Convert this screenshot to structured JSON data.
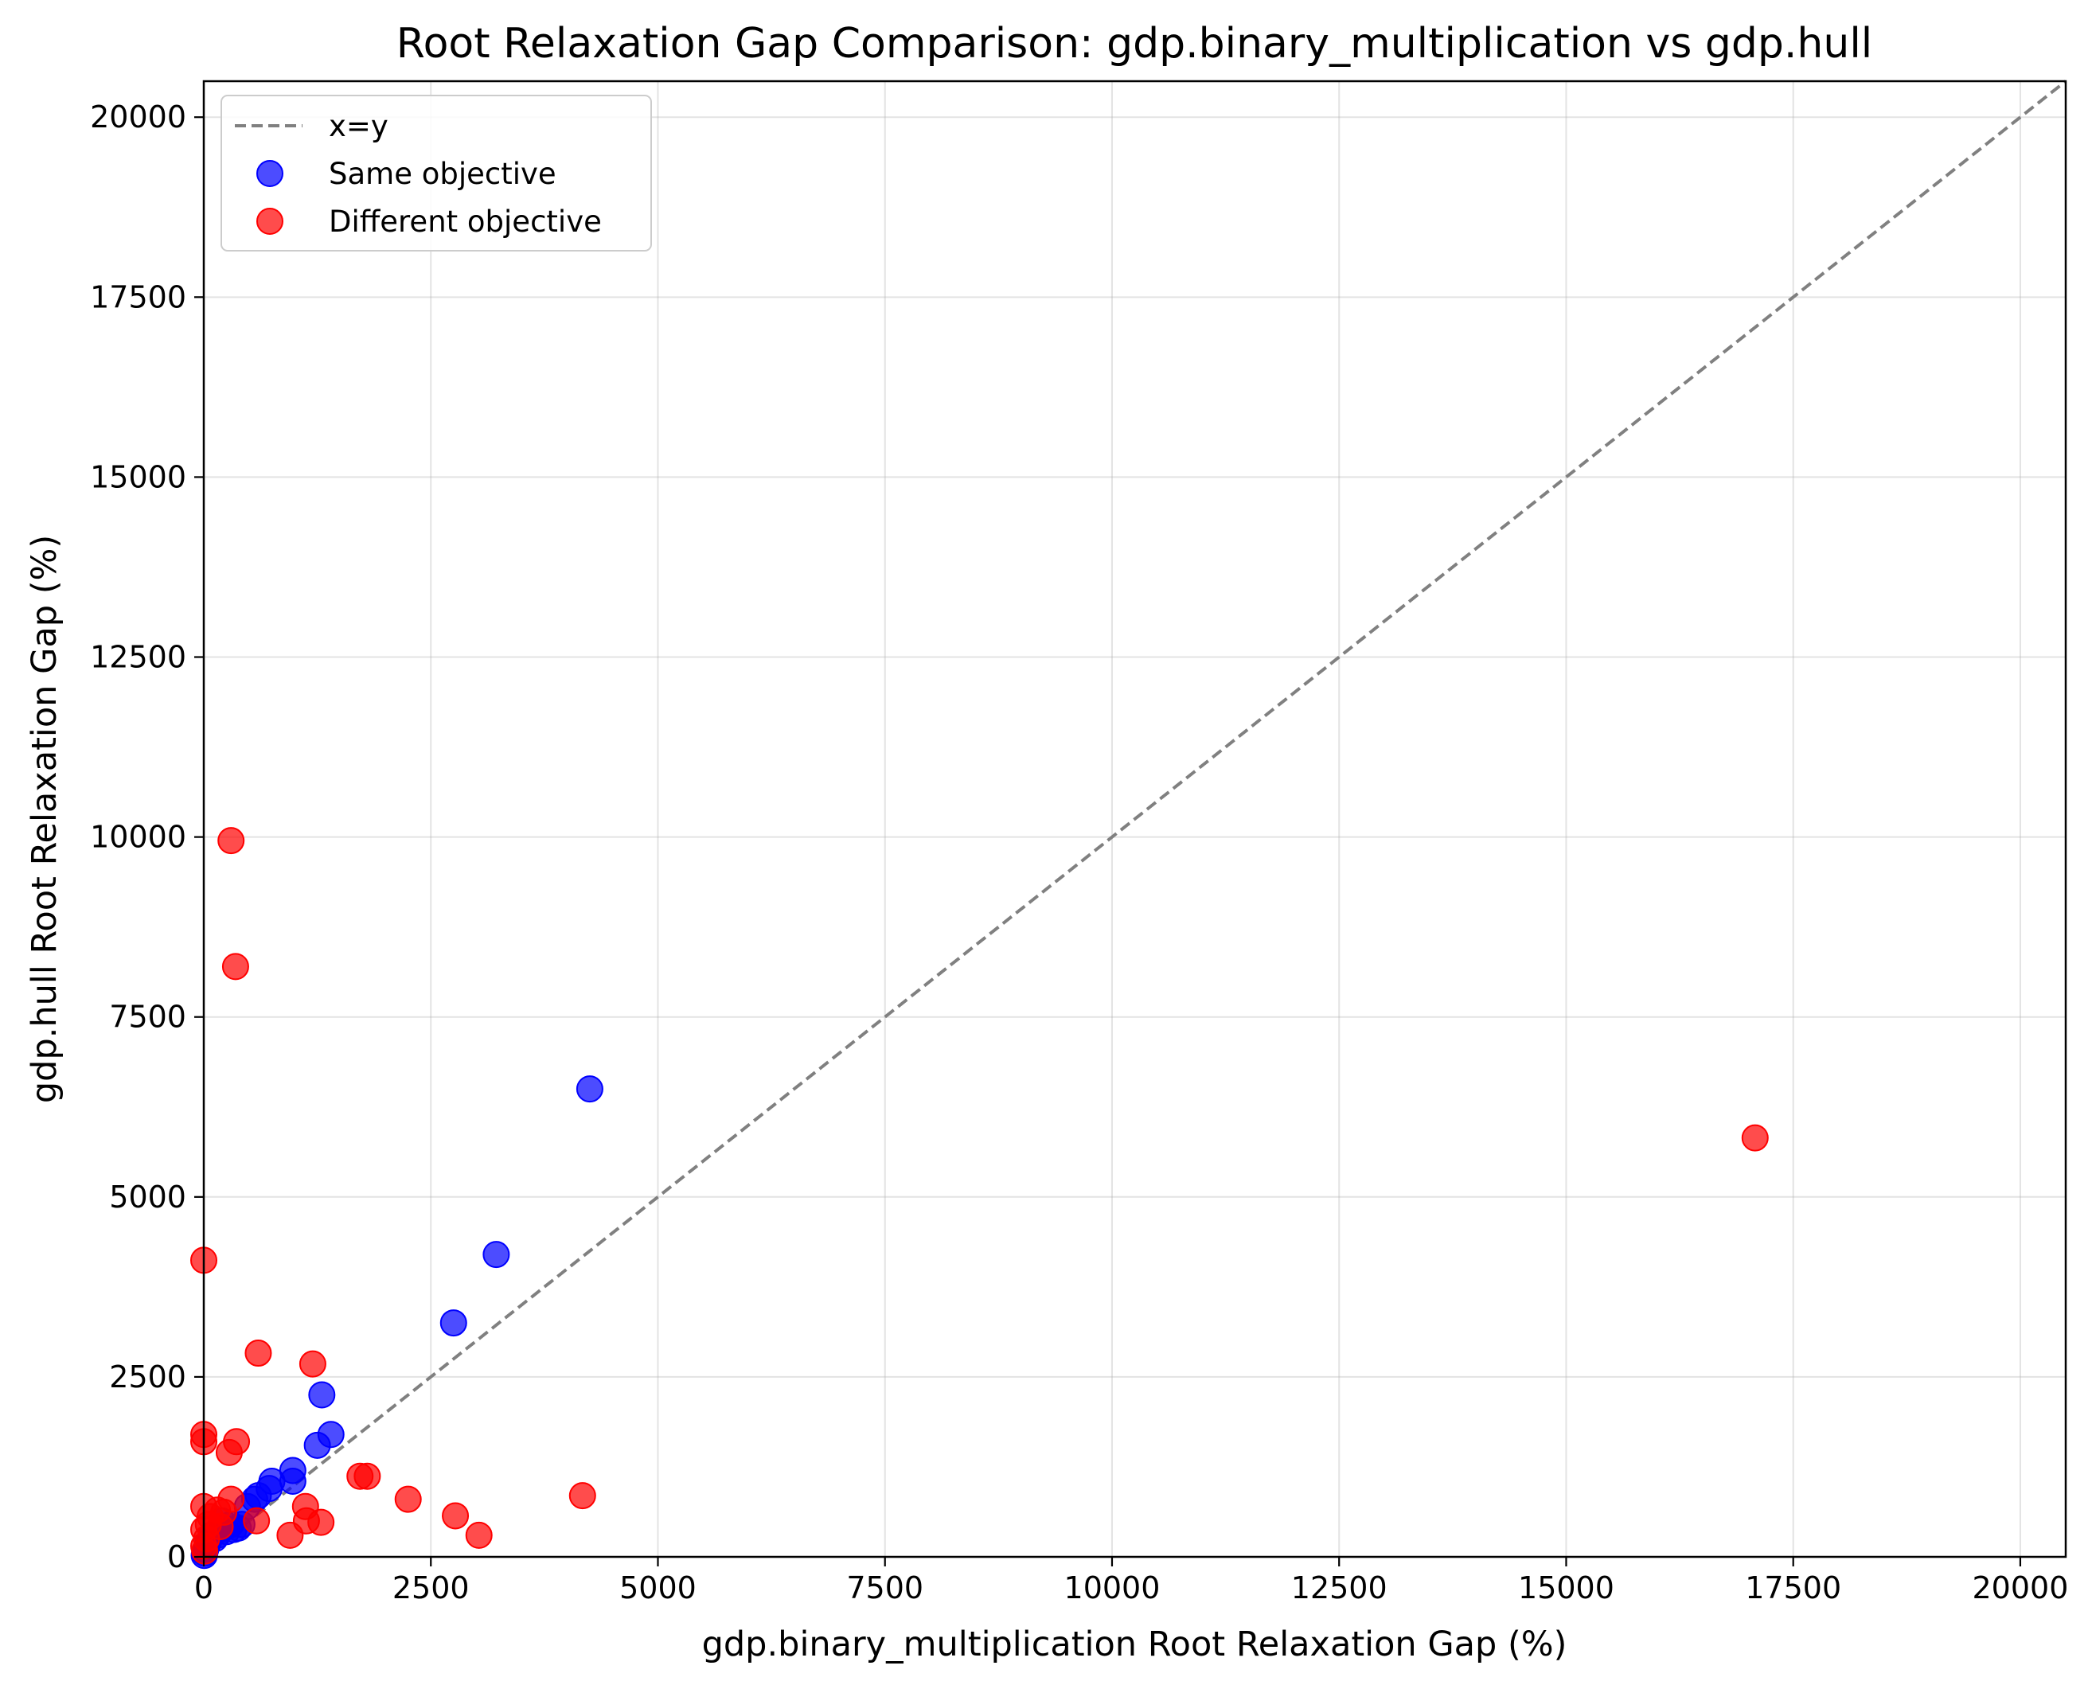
{
  "chart_data": {
    "type": "scatter",
    "title": "Root Relaxation Gap Comparison: gdp.binary_multiplication vs gdp.hull",
    "xlabel": "gdp.binary_multiplication Root Relaxation Gap (%)",
    "ylabel": "gdp.hull Root Relaxation Gap (%)",
    "xlim": [
      0,
      20500
    ],
    "ylim": [
      0,
      20500
    ],
    "x_ticks": [
      "0",
      "2500",
      "5000",
      "7500",
      "10000",
      "12500",
      "15000",
      "17500",
      "20000"
    ],
    "y_ticks": [
      "0",
      "2500",
      "5000",
      "7500",
      "10000",
      "12500",
      "15000",
      "17500",
      "20000"
    ],
    "grid": true,
    "legend_position": "top-left",
    "reference_line": {
      "name": "x=y",
      "style": "dashed",
      "color": "#808080"
    },
    "series": [
      {
        "name": "Same objective",
        "color": "#0000ff",
        "points": [
          [
            4250,
            6500
          ],
          [
            3220,
            4200
          ],
          [
            2750,
            3250
          ],
          [
            1300,
            2250
          ],
          [
            1400,
            1700
          ],
          [
            1250,
            1550
          ],
          [
            980,
            1200
          ],
          [
            980,
            1050
          ],
          [
            750,
            1050
          ],
          [
            720,
            950
          ],
          [
            600,
            850
          ],
          [
            560,
            800
          ],
          [
            480,
            700
          ],
          [
            420,
            450
          ],
          [
            380,
            400
          ],
          [
            330,
            380
          ],
          [
            300,
            450
          ],
          [
            250,
            350
          ],
          [
            220,
            400
          ],
          [
            200,
            500
          ],
          [
            150,
            300
          ],
          [
            120,
            250
          ],
          [
            80,
            300
          ],
          [
            50,
            200
          ],
          [
            20,
            100
          ],
          [
            10,
            50
          ],
          [
            5,
            20
          ]
        ]
      },
      {
        "name": "Different objective",
        "color": "#ff0000",
        "points": [
          [
            17080,
            5820
          ],
          [
            300,
            9950
          ],
          [
            350,
            8200
          ],
          [
            0,
            4120
          ],
          [
            600,
            2830
          ],
          [
            1200,
            2680
          ],
          [
            0,
            1700
          ],
          [
            0,
            1600
          ],
          [
            360,
            1600
          ],
          [
            280,
            1450
          ],
          [
            1720,
            1120
          ],
          [
            1800,
            1120
          ],
          [
            4170,
            850
          ],
          [
            2250,
            800
          ],
          [
            300,
            800
          ],
          [
            1120,
            700
          ],
          [
            0,
            700
          ],
          [
            150,
            650
          ],
          [
            220,
            620
          ],
          [
            70,
            560
          ],
          [
            2770,
            570
          ],
          [
            580,
            500
          ],
          [
            1130,
            500
          ],
          [
            1290,
            480
          ],
          [
            50,
            450
          ],
          [
            180,
            420
          ],
          [
            0,
            380
          ],
          [
            3030,
            300
          ],
          [
            950,
            300
          ],
          [
            30,
            250
          ],
          [
            0,
            150
          ],
          [
            10,
            80
          ]
        ]
      }
    ]
  }
}
